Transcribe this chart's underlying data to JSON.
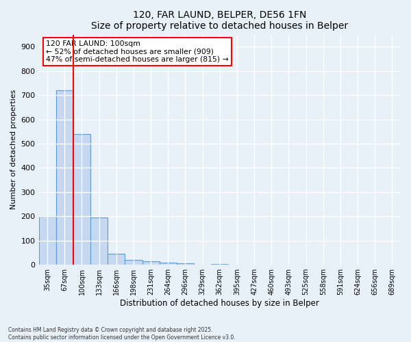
{
  "title1": "120, FAR LAUND, BELPER, DE56 1FN",
  "title2": "Size of property relative to detached houses in Belper",
  "xlabel": "Distribution of detached houses by size in Belper",
  "ylabel": "Number of detached properties",
  "bar_labels": [
    "35sqm",
    "67sqm",
    "100sqm",
    "133sqm",
    "166sqm",
    "198sqm",
    "231sqm",
    "264sqm",
    "296sqm",
    "329sqm",
    "362sqm",
    "395sqm",
    "427sqm",
    "460sqm",
    "493sqm",
    "525sqm",
    "558sqm",
    "591sqm",
    "624sqm",
    "656sqm",
    "689sqm"
  ],
  "bar_values": [
    200,
    720,
    540,
    195,
    45,
    20,
    15,
    8,
    5,
    0,
    3,
    0,
    0,
    0,
    0,
    0,
    0,
    0,
    0,
    0,
    0
  ],
  "bar_color": "#c5d8f0",
  "bar_edge_color": "#5b9bd5",
  "vline_color": "red",
  "vline_index": 2,
  "annotation_text": "120 FAR LAUND: 100sqm\n← 52% of detached houses are smaller (909)\n47% of semi-detached houses are larger (815) →",
  "annotation_box_color": "red",
  "annotation_bg_color": "white",
  "ylim": [
    0,
    950
  ],
  "yticks": [
    0,
    100,
    200,
    300,
    400,
    500,
    600,
    700,
    800,
    900
  ],
  "bg_color": "#e8f0f8",
  "grid_color": "white",
  "footer": "Contains HM Land Registry data © Crown copyright and database right 2025.\nContains public sector information licensed under the Open Government Licence v3.0."
}
